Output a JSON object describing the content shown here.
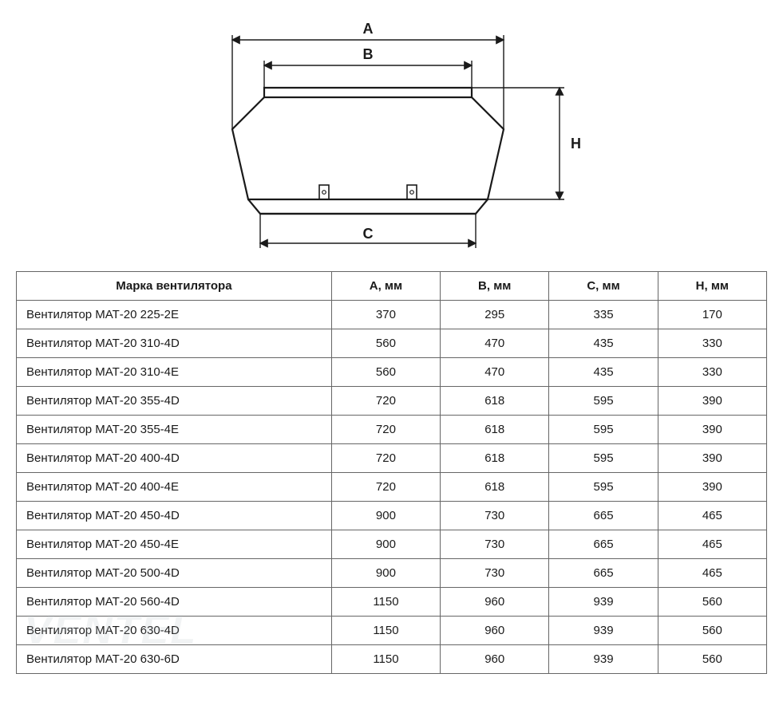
{
  "colors": {
    "border": "#666666",
    "text": "#1a1a1a",
    "diagram_line": "#1a1a1a",
    "diagram_fill": "#ffffff",
    "watermark": "#b8c0c6"
  },
  "diagram": {
    "labels": {
      "A": "A",
      "B": "B",
      "C": "C",
      "H": "H"
    },
    "label_font_size": 18,
    "line_width_outline": 2.2,
    "line_width_dim": 1.4,
    "arrow_size": 8
  },
  "table": {
    "columns": [
      "Марка вентилятора",
      "А, мм",
      "В, мм",
      "С, мм",
      "Н, мм"
    ],
    "rows": [
      [
        "Вентилятор МАТ-20 225-2Е",
        370,
        295,
        335,
        170
      ],
      [
        "Вентилятор МАТ-20 310-4D",
        560,
        470,
        435,
        330
      ],
      [
        "Вентилятор МАТ-20 310-4E",
        560,
        470,
        435,
        330
      ],
      [
        "Вентилятор МАТ-20 355-4D",
        720,
        618,
        595,
        390
      ],
      [
        "Вентилятор МАТ-20 355-4E",
        720,
        618,
        595,
        390
      ],
      [
        "Вентилятор МАТ-20 400-4D",
        720,
        618,
        595,
        390
      ],
      [
        "Вентилятор МАТ-20 400-4E",
        720,
        618,
        595,
        390
      ],
      [
        "Вентилятор МАТ-20 450-4D",
        900,
        730,
        665,
        465
      ],
      [
        "Вентилятор МАТ-20 450-4E",
        900,
        730,
        665,
        465
      ],
      [
        "Вентилятор МАТ-20 500-4D",
        900,
        730,
        665,
        465
      ],
      [
        "Вентилятор МАТ-20 560-4D",
        1150,
        960,
        939,
        560
      ],
      [
        "Вентилятор МАТ-20 630-4D",
        1150,
        960,
        939,
        560
      ],
      [
        "Вентилятор МАТ-20 630-6D",
        1150,
        960,
        939,
        560
      ]
    ]
  },
  "watermark_text": "VENTEL"
}
